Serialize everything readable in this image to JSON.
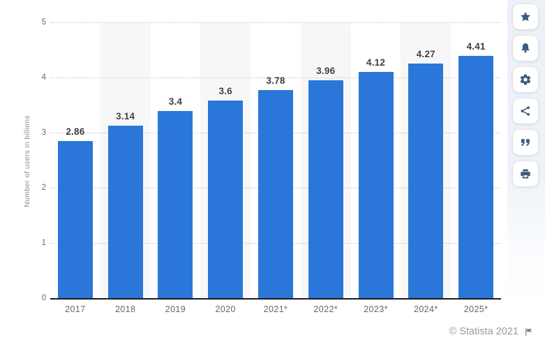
{
  "chart_data": {
    "type": "bar",
    "title": "",
    "categories": [
      "2017",
      "2018",
      "2019",
      "2020",
      "2021*",
      "2022*",
      "2023*",
      "2024*",
      "2025*"
    ],
    "values": [
      2.86,
      3.14,
      3.4,
      3.6,
      3.78,
      3.96,
      4.12,
      4.27,
      4.41
    ],
    "value_labels": [
      "2.86",
      "3.14",
      "3.4",
      "3.6",
      "3.78",
      "3.96",
      "4.12",
      "4.27",
      "4.41"
    ],
    "xlabel": "",
    "ylabel": "Number of users in billions",
    "ylim": [
      0,
      5
    ],
    "yticks": [
      0,
      1,
      2,
      3,
      4,
      5
    ],
    "grid": "horizontal-dotted",
    "legend": "none",
    "bar_color": "#2b77d9",
    "alt_band_color": "#f7f7f7",
    "grid_color": "#c6c6c6",
    "axis_color": "#1a1a1a",
    "value_label_color": "#3d3d3d",
    "tick_label_color": "#6b6b6b",
    "axis_title_color": "#8d8d8d"
  },
  "sidebar": {
    "background_color": "#edf1f7",
    "icon_color": "#3e5a7e",
    "items": [
      {
        "name": "favorite-button",
        "icon": "star-icon"
      },
      {
        "name": "alert-button",
        "icon": "bell-icon"
      },
      {
        "name": "settings-button",
        "icon": "gear-icon"
      },
      {
        "name": "share-button",
        "icon": "share-icon"
      },
      {
        "name": "citation-button",
        "icon": "quote-icon"
      },
      {
        "name": "print-button",
        "icon": "print-icon"
      }
    ]
  },
  "footer": {
    "copyright": "© Statista 2021",
    "flag_icon": "report-flag-icon"
  }
}
